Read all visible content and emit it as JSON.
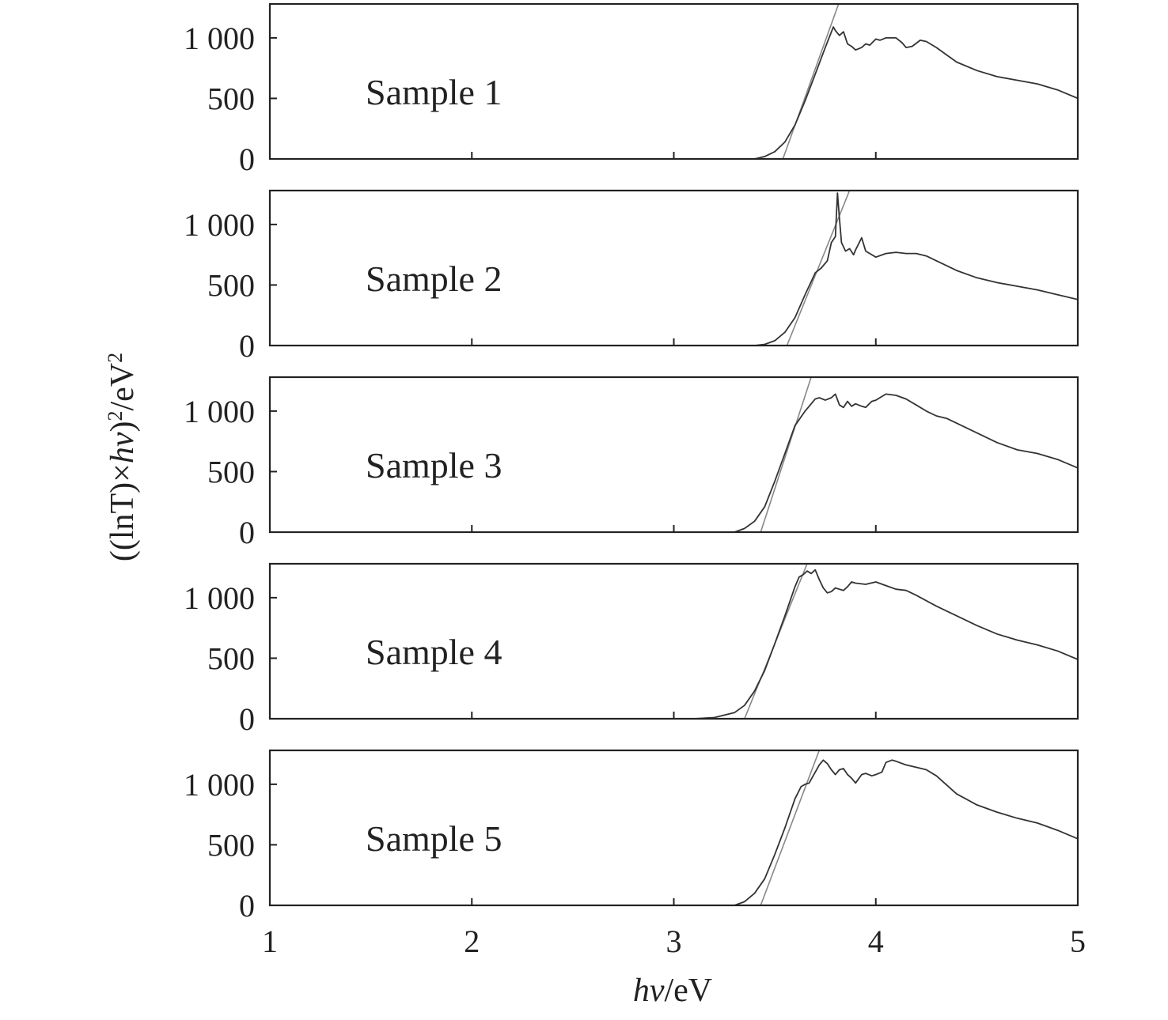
{
  "chart_data": {
    "type": "line",
    "xlabel_italic": "hν",
    "xlabel_unit": "/eV",
    "ylabel_main": "((lnT)×",
    "ylabel_italic": "hν",
    "ylabel_tail": ")",
    "ylabel_sup": "2",
    "ylabel_unit": "/eV",
    "ylabel_unit_sup": "2",
    "xlim": [
      1,
      5
    ],
    "ylim": [
      0,
      1280
    ],
    "x_ticks": [
      1,
      2,
      3,
      4,
      5
    ],
    "x_tick_labels": [
      "1",
      "2",
      "3",
      "4",
      "5"
    ],
    "y_ticks": [
      0,
      500,
      1000
    ],
    "y_tick_labels": [
      "0",
      "500",
      "1 000"
    ],
    "grid": false,
    "panels": [
      {
        "name": "Sample 1",
        "x": [
          3.4,
          3.45,
          3.5,
          3.55,
          3.6,
          3.65,
          3.7,
          3.75,
          3.79,
          3.8,
          3.82,
          3.84,
          3.86,
          3.88,
          3.9,
          3.93,
          3.95,
          3.97,
          4.0,
          4.02,
          4.05,
          4.1,
          4.13,
          4.15,
          4.18,
          4.22,
          4.25,
          4.3,
          4.4,
          4.5,
          4.6,
          4.7,
          4.8,
          4.9,
          5.0
        ],
        "y": [
          0,
          20,
          60,
          140,
          280,
          480,
          700,
          920,
          1090,
          1060,
          1020,
          1050,
          950,
          930,
          900,
          920,
          950,
          940,
          990,
          980,
          1000,
          1000,
          960,
          920,
          930,
          980,
          970,
          920,
          800,
          730,
          680,
          650,
          620,
          570,
          500
        ],
        "fit_line": [
          [
            3.54,
            0
          ],
          [
            3.82,
            1300
          ]
        ]
      },
      {
        "name": "Sample 2",
        "x": [
          3.4,
          3.45,
          3.5,
          3.55,
          3.6,
          3.65,
          3.7,
          3.73,
          3.76,
          3.78,
          3.8,
          3.81,
          3.82,
          3.83,
          3.85,
          3.87,
          3.89,
          3.9,
          3.93,
          3.95,
          3.97,
          4.0,
          4.05,
          4.1,
          4.15,
          4.2,
          4.25,
          4.3,
          4.4,
          4.5,
          4.6,
          4.7,
          4.8,
          4.9,
          5.0
        ],
        "y": [
          0,
          10,
          40,
          110,
          230,
          420,
          600,
          640,
          700,
          850,
          900,
          1260,
          1050,
          850,
          780,
          800,
          750,
          790,
          890,
          780,
          760,
          730,
          760,
          770,
          760,
          760,
          740,
          700,
          620,
          560,
          520,
          490,
          460,
          420,
          380
        ],
        "fit_line": [
          [
            3.56,
            0
          ],
          [
            3.87,
            1280
          ]
        ]
      },
      {
        "name": "Sample 3",
        "x": [
          3.3,
          3.35,
          3.4,
          3.45,
          3.5,
          3.55,
          3.6,
          3.65,
          3.7,
          3.72,
          3.75,
          3.78,
          3.8,
          3.82,
          3.84,
          3.86,
          3.88,
          3.9,
          3.93,
          3.95,
          3.98,
          4.0,
          4.05,
          4.1,
          4.15,
          4.2,
          4.25,
          4.3,
          4.35,
          4.4,
          4.5,
          4.6,
          4.7,
          4.8,
          4.9,
          5.0
        ],
        "y": [
          0,
          30,
          90,
          210,
          420,
          650,
          880,
          1000,
          1100,
          1110,
          1090,
          1110,
          1140,
          1050,
          1030,
          1080,
          1040,
          1060,
          1040,
          1030,
          1080,
          1090,
          1140,
          1130,
          1100,
          1050,
          1000,
          960,
          940,
          900,
          820,
          740,
          680,
          650,
          600,
          530
        ],
        "fit_line": [
          [
            3.43,
            0
          ],
          [
            3.68,
            1280
          ]
        ]
      },
      {
        "name": "Sample 4",
        "x": [
          3.1,
          3.2,
          3.3,
          3.35,
          3.4,
          3.45,
          3.5,
          3.55,
          3.6,
          3.62,
          3.64,
          3.66,
          3.68,
          3.7,
          3.72,
          3.74,
          3.76,
          3.78,
          3.8,
          3.82,
          3.84,
          3.86,
          3.88,
          3.9,
          3.95,
          4.0,
          4.05,
          4.1,
          4.15,
          4.2,
          4.3,
          4.4,
          4.5,
          4.6,
          4.7,
          4.8,
          4.9,
          5.0
        ],
        "y": [
          0,
          10,
          50,
          110,
          230,
          400,
          620,
          850,
          1090,
          1170,
          1190,
          1220,
          1200,
          1230,
          1150,
          1080,
          1040,
          1050,
          1080,
          1070,
          1060,
          1090,
          1130,
          1120,
          1110,
          1130,
          1100,
          1070,
          1060,
          1020,
          930,
          850,
          770,
          700,
          650,
          610,
          560,
          490
        ],
        "fit_line": [
          [
            3.35,
            0
          ],
          [
            3.66,
            1280
          ]
        ]
      },
      {
        "name": "Sample 5",
        "x": [
          3.3,
          3.35,
          3.4,
          3.45,
          3.5,
          3.55,
          3.6,
          3.63,
          3.65,
          3.67,
          3.7,
          3.72,
          3.74,
          3.76,
          3.78,
          3.8,
          3.82,
          3.84,
          3.86,
          3.88,
          3.9,
          3.93,
          3.95,
          3.98,
          4.0,
          4.03,
          4.05,
          4.08,
          4.1,
          4.15,
          4.2,
          4.25,
          4.3,
          4.4,
          4.5,
          4.6,
          4.7,
          4.8,
          4.9,
          5.0
        ],
        "y": [
          0,
          30,
          100,
          220,
          420,
          640,
          880,
          980,
          1000,
          1010,
          1100,
          1160,
          1200,
          1170,
          1120,
          1080,
          1120,
          1130,
          1080,
          1050,
          1010,
          1080,
          1090,
          1070,
          1080,
          1100,
          1180,
          1200,
          1190,
          1160,
          1140,
          1120,
          1070,
          920,
          830,
          770,
          720,
          680,
          620,
          550
        ],
        "fit_line": [
          [
            3.43,
            0
          ],
          [
            3.72,
            1280
          ]
        ]
      }
    ]
  }
}
